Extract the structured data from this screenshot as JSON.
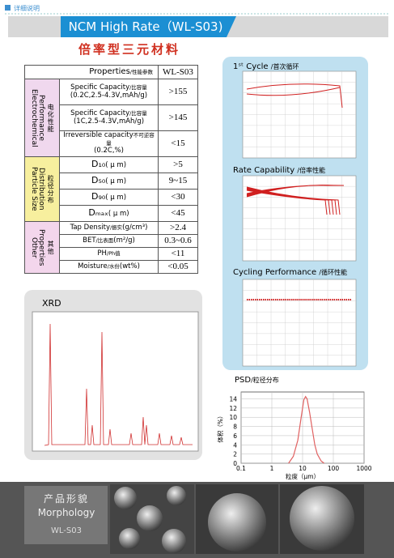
{
  "header": {
    "label": "详细说明",
    "title": "NCM High Rate（WL-S03)",
    "subtitle": "倍率型三元材料"
  },
  "table": {
    "head_property": "Properties",
    "head_property_cn": "/性能参数",
    "head_value": "WL-S03",
    "groups": [
      {
        "name": "Electrochemical Performance",
        "name_cn": "电化性能",
        "rows": [
          {
            "property": "Specific Capacity",
            "property_cn": "/比容量",
            "condition": "(0.2C,2.5-4.3V,mAh/g)",
            "value": ">155"
          },
          {
            "property": "Specific Capacity",
            "property_cn": "/比容量",
            "condition": "(1C,2.5-4.3V,mAh/g)",
            "value": ">145"
          },
          {
            "property": "Irreversible capacity",
            "property_cn": "不可逆容量",
            "condition": "(0.2C,%)",
            "value": "<15"
          }
        ]
      },
      {
        "name": "Particle Size Distribution",
        "name_cn": "粒径分布",
        "rows": [
          {
            "property": "D₁₀",
            "condition": "( μ m)",
            "value": ">5"
          },
          {
            "property": "D₅₀",
            "condition": "( μ m)",
            "value": "9~15"
          },
          {
            "property": "D₉₀",
            "condition": "( μ m)",
            "value": "<30"
          },
          {
            "property": "Dₘₐₓ",
            "condition": "( μ m)",
            "value": "<45"
          }
        ]
      },
      {
        "name": "Other Properties",
        "name_cn": "其他",
        "rows": [
          {
            "property": "Tap Density",
            "property_cn": "/振实",
            "condition": "(g/cm³)",
            "value": ">2.4"
          },
          {
            "property": "BET",
            "property_cn": "/比表面",
            "condition": "(m²/g)",
            "value": "0.3~0.6"
          },
          {
            "property": "PH",
            "property_cn": "/Ph值",
            "value": "<11"
          },
          {
            "property": "Moisture",
            "property_cn": "/水份",
            "condition": "(wt%)",
            "value": "<0.05"
          }
        ]
      }
    ]
  },
  "panels": {
    "cycle": "1ˢᵗ Cycle",
    "cycle_cn": "/首次循环",
    "rate": "Rate Capability",
    "rate_cn": "/倍率性能",
    "cycling": "Cycling Performance",
    "cycling_cn": "/循环性能",
    "xrd": "XRD"
  },
  "morphology": {
    "title_cn": "产品形貌",
    "title": "Morphology",
    "model": "WL-S03"
  },
  "chart_data": {
    "type": "line",
    "title": "PSD",
    "title_cn": "/粒径分布",
    "x_label": "粒度（μm）",
    "y_label": "体积（%）",
    "x_scale": "log",
    "xlim": [
      0.1,
      1000
    ],
    "xticks": [
      0.1,
      1,
      10,
      100,
      1000
    ],
    "ylim": [
      0,
      15.5
    ],
    "yticks": [
      0,
      2,
      4,
      6,
      8,
      10,
      12,
      14
    ],
    "grid": true,
    "color": "#e06060",
    "x": [
      3.5,
      5,
      7,
      9,
      11,
      12.5,
      14,
      17,
      20,
      25,
      30,
      40,
      50
    ],
    "values": [
      0,
      1.5,
      5,
      10,
      13.8,
      14.5,
      14,
      11,
      8,
      4,
      2,
      0.5,
      0
    ]
  }
}
